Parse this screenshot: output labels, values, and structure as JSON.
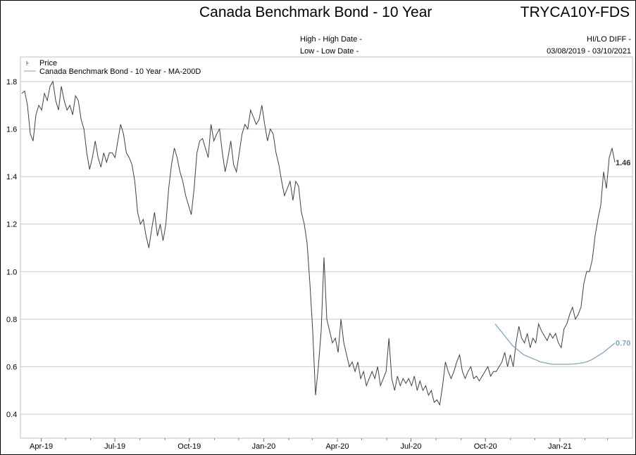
{
  "header": {
    "title": "Canada Benchmark Bond - 10 Year",
    "ticker": "TRYCA10Y-FDS",
    "high_label": "High - High Date -",
    "low_label": "Low - Low Date -",
    "hilo_label": "HI/LO DIFF -",
    "date_range": "03/08/2019 - 03/10/2021"
  },
  "chart_data": {
    "type": "line",
    "title": "Canada Benchmark Bond - 10 Year",
    "x_start": "2019-03-08",
    "x_end": "2021-03-10",
    "ylim": [
      0.35,
      1.9
    ],
    "yticks": [
      "0.4",
      "0.6",
      "0.8",
      "1.0",
      "1.2",
      "1.4",
      "1.6",
      "1.8"
    ],
    "xticks": [
      "Apr-19",
      "Jul-19",
      "Oct-19",
      "Jan-20",
      "Apr-20",
      "Jul-20",
      "Oct-20",
      "Jan-21"
    ],
    "legend": [
      "Price",
      "Canada Benchmark Bond - 10 Year - MA-200D"
    ],
    "legend_placement": "top-left",
    "series": [
      {
        "name": "Price",
        "color": "#404040",
        "last_label": "1.46",
        "values": [
          1.75,
          1.76,
          1.7,
          1.58,
          1.55,
          1.66,
          1.7,
          1.68,
          1.75,
          1.72,
          1.78,
          1.8,
          1.72,
          1.68,
          1.78,
          1.72,
          1.68,
          1.7,
          1.66,
          1.74,
          1.72,
          1.64,
          1.6,
          1.5,
          1.43,
          1.48,
          1.55,
          1.48,
          1.44,
          1.5,
          1.46,
          1.5,
          1.5,
          1.48,
          1.55,
          1.62,
          1.58,
          1.5,
          1.48,
          1.45,
          1.38,
          1.25,
          1.2,
          1.22,
          1.15,
          1.1,
          1.18,
          1.25,
          1.15,
          1.2,
          1.13,
          1.2,
          1.35,
          1.45,
          1.52,
          1.48,
          1.42,
          1.38,
          1.32,
          1.28,
          1.24,
          1.35,
          1.5,
          1.55,
          1.56,
          1.52,
          1.48,
          1.62,
          1.55,
          1.58,
          1.6,
          1.5,
          1.42,
          1.48,
          1.55,
          1.45,
          1.42,
          1.5,
          1.58,
          1.62,
          1.6,
          1.68,
          1.65,
          1.62,
          1.64,
          1.7,
          1.62,
          1.55,
          1.6,
          1.58,
          1.5,
          1.45,
          1.38,
          1.32,
          1.35,
          1.38,
          1.3,
          1.38,
          1.36,
          1.25,
          1.2,
          1.12,
          0.95,
          0.75,
          0.48,
          0.6,
          0.75,
          1.06,
          0.8,
          0.75,
          0.7,
          0.72,
          0.66,
          0.8,
          0.7,
          0.65,
          0.6,
          0.62,
          0.58,
          0.62,
          0.55,
          0.58,
          0.52,
          0.55,
          0.58,
          0.55,
          0.6,
          0.52,
          0.55,
          0.58,
          0.72,
          0.55,
          0.5,
          0.56,
          0.52,
          0.55,
          0.53,
          0.55,
          0.52,
          0.56,
          0.5,
          0.54,
          0.5,
          0.52,
          0.48,
          0.5,
          0.45,
          0.46,
          0.44,
          0.52,
          0.62,
          0.58,
          0.55,
          0.58,
          0.62,
          0.65,
          0.58,
          0.55,
          0.58,
          0.6,
          0.55,
          0.56,
          0.54,
          0.56,
          0.58,
          0.6,
          0.56,
          0.58,
          0.58,
          0.6,
          0.62,
          0.66,
          0.6,
          0.65,
          0.6,
          0.7,
          0.77,
          0.72,
          0.7,
          0.74,
          0.68,
          0.72,
          0.7,
          0.78,
          0.75,
          0.73,
          0.71,
          0.74,
          0.72,
          0.74,
          0.7,
          0.68,
          0.76,
          0.78,
          0.82,
          0.85,
          0.8,
          0.82,
          0.85,
          0.95,
          1.0,
          1.0,
          1.05,
          1.15,
          1.22,
          1.28,
          1.42,
          1.35,
          1.48,
          1.52,
          1.46
        ]
      },
      {
        "name": "Canada Benchmark Bond - 10 Year - MA-200D",
        "color": "#7fa7bf",
        "last_label": "0.70",
        "start_date": "2020-10-13",
        "values": [
          0.78,
          0.75,
          0.72,
          0.69,
          0.67,
          0.65,
          0.64,
          0.63,
          0.62,
          0.615,
          0.61,
          0.61,
          0.61,
          0.61,
          0.612,
          0.615,
          0.62,
          0.63,
          0.645,
          0.66,
          0.68,
          0.7
        ]
      }
    ]
  }
}
